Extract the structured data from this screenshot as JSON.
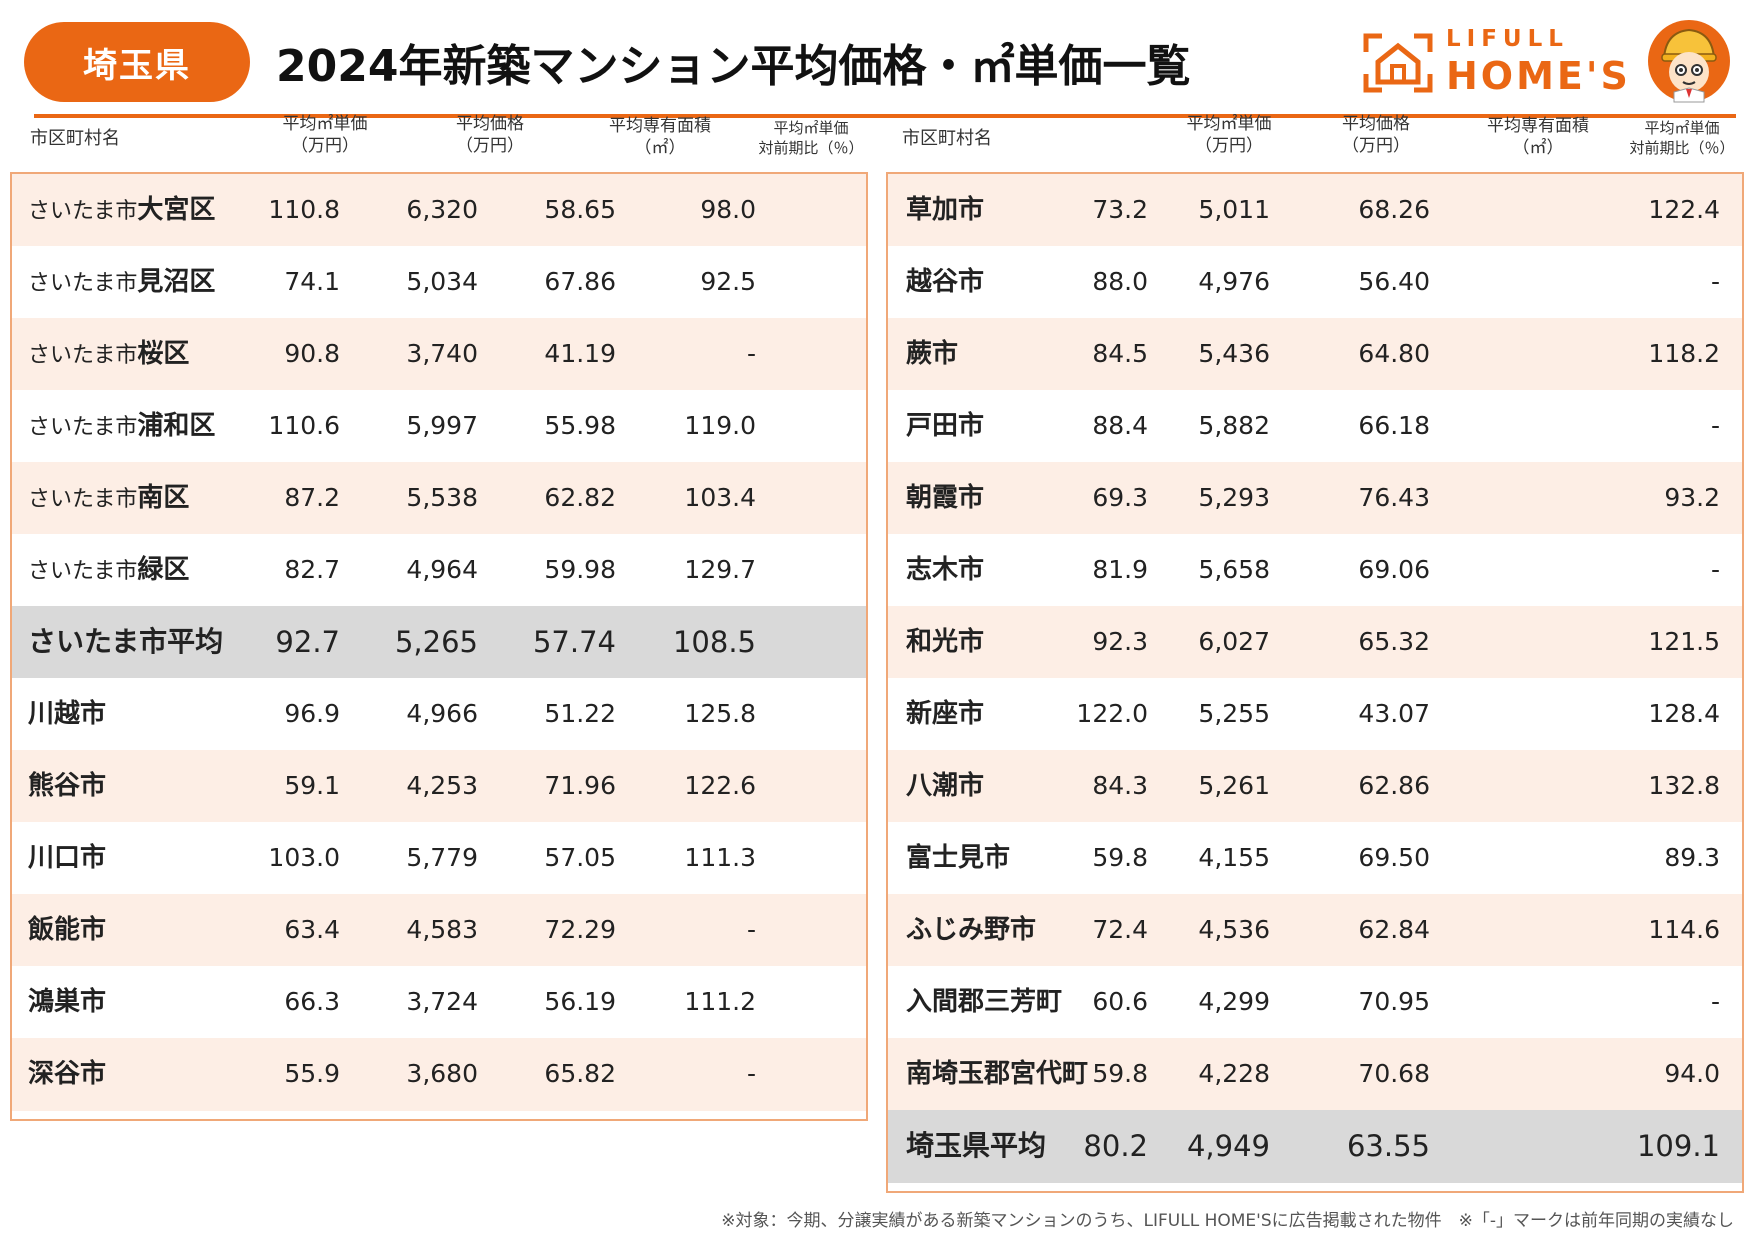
{
  "header": {
    "prefecture": "埼玉県",
    "title": "2024年新築マンション平均価格・㎡単価一覧",
    "logo_top": "LIFULL",
    "logo_bottom": "HOME'S"
  },
  "columns": {
    "name": "市区町村名",
    "unit_price_l1": "平均㎡単価",
    "unit_price_l2": "（万円）",
    "price_l1": "平均価格",
    "price_l2": "（万円）",
    "area_l1": "平均専有面積",
    "area_l2": "（㎡）",
    "yoy_l1": "平均㎡単価",
    "yoy_l2": "対前期比（％）"
  },
  "left_table": [
    {
      "prefix": "さいたま市",
      "name": "大宮区",
      "unit_price": "110.8",
      "price": "6,320",
      "area": "58.65",
      "yoy": "98.0"
    },
    {
      "prefix": "さいたま市",
      "name": "見沼区",
      "unit_price": "74.1",
      "price": "5,034",
      "area": "67.86",
      "yoy": "92.5"
    },
    {
      "prefix": "さいたま市",
      "name": "桜区",
      "unit_price": "90.8",
      "price": "3,740",
      "area": "41.19",
      "yoy": "-"
    },
    {
      "prefix": "さいたま市",
      "name": "浦和区",
      "unit_price": "110.6",
      "price": "5,997",
      "area": "55.98",
      "yoy": "119.0"
    },
    {
      "prefix": "さいたま市",
      "name": "南区",
      "unit_price": "87.2",
      "price": "5,538",
      "area": "62.82",
      "yoy": "103.4"
    },
    {
      "prefix": "さいたま市",
      "name": "緑区",
      "unit_price": "82.7",
      "price": "4,964",
      "area": "59.98",
      "yoy": "129.7"
    },
    {
      "prefix": "",
      "name": "さいたま市平均",
      "unit_price": "92.7",
      "price": "5,265",
      "area": "57.74",
      "yoy": "108.5",
      "average": true
    },
    {
      "prefix": "",
      "name": "川越市",
      "unit_price": "96.9",
      "price": "4,966",
      "area": "51.22",
      "yoy": "125.8"
    },
    {
      "prefix": "",
      "name": "熊谷市",
      "unit_price": "59.1",
      "price": "4,253",
      "area": "71.96",
      "yoy": "122.6"
    },
    {
      "prefix": "",
      "name": "川口市",
      "unit_price": "103.0",
      "price": "5,779",
      "area": "57.05",
      "yoy": "111.3"
    },
    {
      "prefix": "",
      "name": "飯能市",
      "unit_price": "63.4",
      "price": "4,583",
      "area": "72.29",
      "yoy": "-"
    },
    {
      "prefix": "",
      "name": "鴻巣市",
      "unit_price": "66.3",
      "price": "3,724",
      "area": "56.19",
      "yoy": "111.2"
    },
    {
      "prefix": "",
      "name": "深谷市",
      "unit_price": "55.9",
      "price": "3,680",
      "area": "65.82",
      "yoy": "-"
    }
  ],
  "right_table": [
    {
      "prefix": "",
      "name": "草加市",
      "unit_price": "73.2",
      "price": "5,011",
      "area": "68.26",
      "yoy": "122.4"
    },
    {
      "prefix": "",
      "name": "越谷市",
      "unit_price": "88.0",
      "price": "4,976",
      "area": "56.40",
      "yoy": "-"
    },
    {
      "prefix": "",
      "name": "蕨市",
      "unit_price": "84.5",
      "price": "5,436",
      "area": "64.80",
      "yoy": "118.2"
    },
    {
      "prefix": "",
      "name": "戸田市",
      "unit_price": "88.4",
      "price": "5,882",
      "area": "66.18",
      "yoy": "-"
    },
    {
      "prefix": "",
      "name": "朝霞市",
      "unit_price": "69.3",
      "price": "5,293",
      "area": "76.43",
      "yoy": "93.2"
    },
    {
      "prefix": "",
      "name": "志木市",
      "unit_price": "81.9",
      "price": "5,658",
      "area": "69.06",
      "yoy": "-"
    },
    {
      "prefix": "",
      "name": "和光市",
      "unit_price": "92.3",
      "price": "6,027",
      "area": "65.32",
      "yoy": "121.5"
    },
    {
      "prefix": "",
      "name": "新座市",
      "unit_price": "122.0",
      "price": "5,255",
      "area": "43.07",
      "yoy": "128.4"
    },
    {
      "prefix": "",
      "name": "八潮市",
      "unit_price": "84.3",
      "price": "5,261",
      "area": "62.86",
      "yoy": "132.8"
    },
    {
      "prefix": "",
      "name": "富士見市",
      "unit_price": "59.8",
      "price": "4,155",
      "area": "69.50",
      "yoy": "89.3"
    },
    {
      "prefix": "",
      "name": "ふじみ野市",
      "unit_price": "72.4",
      "price": "4,536",
      "area": "62.84",
      "yoy": "114.6"
    },
    {
      "prefix": "",
      "name": "入間郡三芳町",
      "unit_price": "60.6",
      "price": "4,299",
      "area": "70.95",
      "yoy": "-"
    },
    {
      "prefix": "",
      "name": "南埼玉郡宮代町",
      "unit_price": "59.8",
      "price": "4,228",
      "area": "70.68",
      "yoy": "94.0"
    },
    {
      "prefix": "",
      "name": "埼玉県平均",
      "unit_price": "80.2",
      "price": "4,949",
      "area": "63.55",
      "yoy": "109.1",
      "average": true
    }
  ],
  "footnote": "※対象：今期、分譲実績がある新築マンションのうち、LIFULL HOME'Sに広告掲載された物件　※「-」マークは前年同期の実績なし",
  "colors": {
    "accent": "#ea6714",
    "row_tint": "#fdeee5",
    "average_row": "#d9d9d9",
    "border": "#f0a878"
  }
}
